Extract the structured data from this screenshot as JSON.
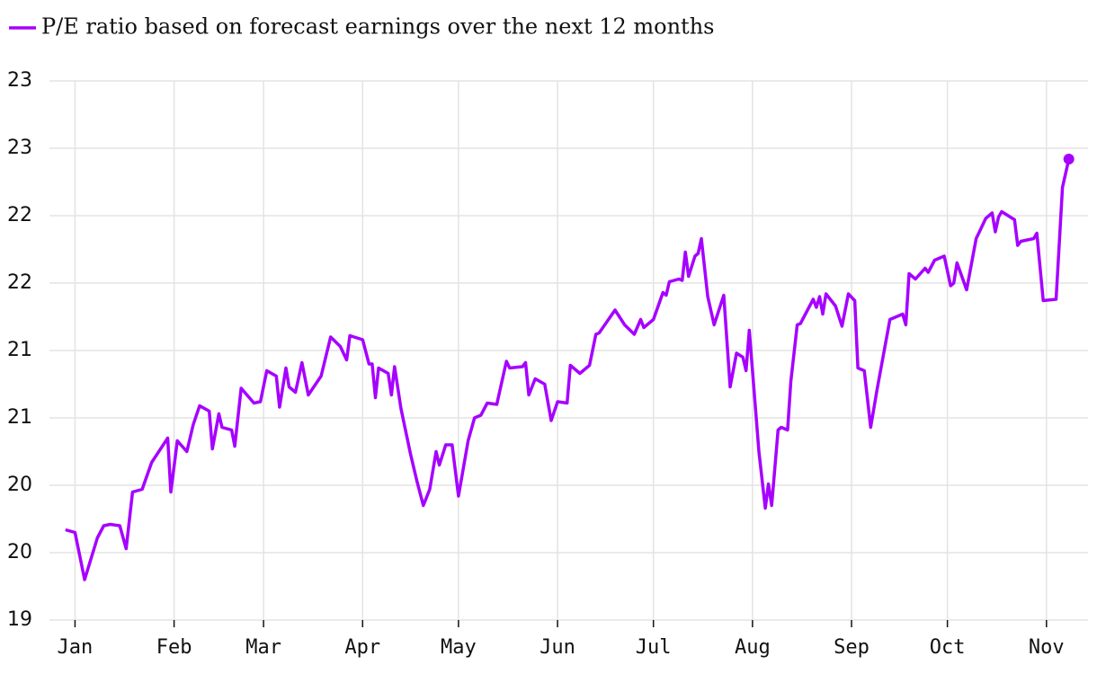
{
  "chart_data": {
    "type": "line",
    "xlim": [
      -8,
      317
    ],
    "xticks": [
      {
        "value": 0,
        "label": "Jan"
      },
      {
        "value": 31,
        "label": "Feb"
      },
      {
        "value": 59,
        "label": "Mar"
      },
      {
        "value": 90,
        "label": "Apr"
      },
      {
        "value": 120,
        "label": "May"
      },
      {
        "value": 151,
        "label": "Jun"
      },
      {
        "value": 181,
        "label": "Jul"
      },
      {
        "value": 212,
        "label": "Aug"
      },
      {
        "value": 243,
        "label": "Sep"
      },
      {
        "value": 273,
        "label": "Oct"
      },
      {
        "value": 304,
        "label": "Nov"
      }
    ],
    "ylim": [
      19,
      23
    ],
    "yticks": [
      {
        "value": 19,
        "label": "19"
      },
      {
        "value": 19.5,
        "label": "20"
      },
      {
        "value": 20,
        "label": "20"
      },
      {
        "value": 20.5,
        "label": "21"
      },
      {
        "value": 21,
        "label": "21"
      },
      {
        "value": 21.5,
        "label": "22"
      },
      {
        "value": 22,
        "label": "22"
      },
      {
        "value": 22.5,
        "label": "23"
      },
      {
        "value": 23,
        "label": "23"
      }
    ],
    "grid": true,
    "x": [
      -3,
      0,
      3,
      7,
      9,
      11,
      14,
      16,
      18,
      21,
      24,
      29,
      30,
      32,
      35,
      37,
      39,
      42,
      43,
      45,
      46,
      49,
      50,
      52,
      56,
      58,
      60,
      63,
      64,
      66,
      67,
      69,
      71,
      73,
      77,
      80,
      83,
      85,
      86,
      90,
      92,
      93,
      94,
      95,
      98,
      99,
      100,
      102,
      105,
      107,
      109,
      111,
      113,
      114,
      116,
      118,
      120,
      123,
      125,
      127,
      129,
      132,
      135,
      136,
      140,
      141,
      142,
      144,
      147,
      149,
      151,
      154,
      155,
      158,
      161,
      163,
      164,
      169,
      172,
      175,
      177,
      178,
      181,
      184,
      185,
      186,
      189,
      190,
      191,
      192,
      194,
      195,
      196,
      198,
      200,
      203,
      205,
      207,
      209,
      210,
      211,
      214,
      216,
      217,
      218,
      220,
      221,
      223,
      224,
      226,
      227,
      231,
      232,
      233,
      234,
      235,
      238,
      240,
      242,
      244,
      245,
      247,
      249,
      251,
      255,
      259,
      260,
      261,
      263,
      266,
      267,
      269,
      272,
      274,
      275,
      276,
      279,
      282,
      283,
      285,
      287,
      288,
      289,
      290,
      294,
      295,
      296,
      300,
      301,
      303,
      307,
      309,
      311
    ],
    "series": [
      {
        "name": "P/E ratio based on forecast earnings over the next 12 months",
        "color": "#a600ff",
        "values": [
          19.67,
          19.65,
          19.3,
          19.61,
          19.7,
          19.71,
          19.7,
          19.53,
          19.95,
          19.97,
          20.17,
          20.35,
          19.95,
          20.33,
          20.25,
          20.45,
          20.59,
          20.55,
          20.27,
          20.53,
          20.43,
          20.41,
          20.29,
          20.72,
          20.61,
          20.62,
          20.85,
          20.81,
          20.58,
          20.87,
          20.73,
          20.69,
          20.91,
          20.67,
          20.81,
          21.1,
          21.03,
          20.93,
          21.11,
          21.08,
          20.9,
          20.9,
          20.65,
          20.87,
          20.83,
          20.67,
          20.88,
          20.57,
          20.23,
          20.03,
          19.85,
          19.97,
          20.25,
          20.15,
          20.3,
          20.3,
          19.92,
          20.33,
          20.5,
          20.52,
          20.61,
          20.6,
          20.92,
          20.87,
          20.88,
          20.91,
          20.67,
          20.79,
          20.75,
          20.48,
          20.62,
          20.61,
          20.89,
          20.83,
          20.89,
          21.12,
          21.13,
          21.3,
          21.19,
          21.12,
          21.23,
          21.17,
          21.23,
          21.43,
          21.41,
          21.51,
          21.53,
          21.52,
          21.73,
          21.55,
          21.7,
          21.72,
          21.83,
          21.4,
          21.19,
          21.41,
          20.73,
          20.98,
          20.95,
          20.85,
          21.15,
          20.25,
          19.83,
          20.01,
          19.85,
          20.41,
          20.43,
          20.41,
          20.77,
          21.19,
          21.2,
          21.38,
          21.32,
          21.4,
          21.27,
          21.42,
          21.33,
          21.18,
          21.42,
          21.37,
          20.87,
          20.85,
          20.43,
          20.71,
          21.23,
          21.27,
          21.19,
          21.57,
          21.53,
          21.61,
          21.58,
          21.67,
          21.7,
          21.48,
          21.5,
          21.65,
          21.45,
          21.83,
          21.88,
          21.98,
          22.02,
          21.88,
          21.99,
          22.03,
          21.97,
          21.78,
          21.81,
          21.83,
          21.87,
          21.37,
          21.38,
          22.21,
          22.42
        ]
      }
    ]
  }
}
